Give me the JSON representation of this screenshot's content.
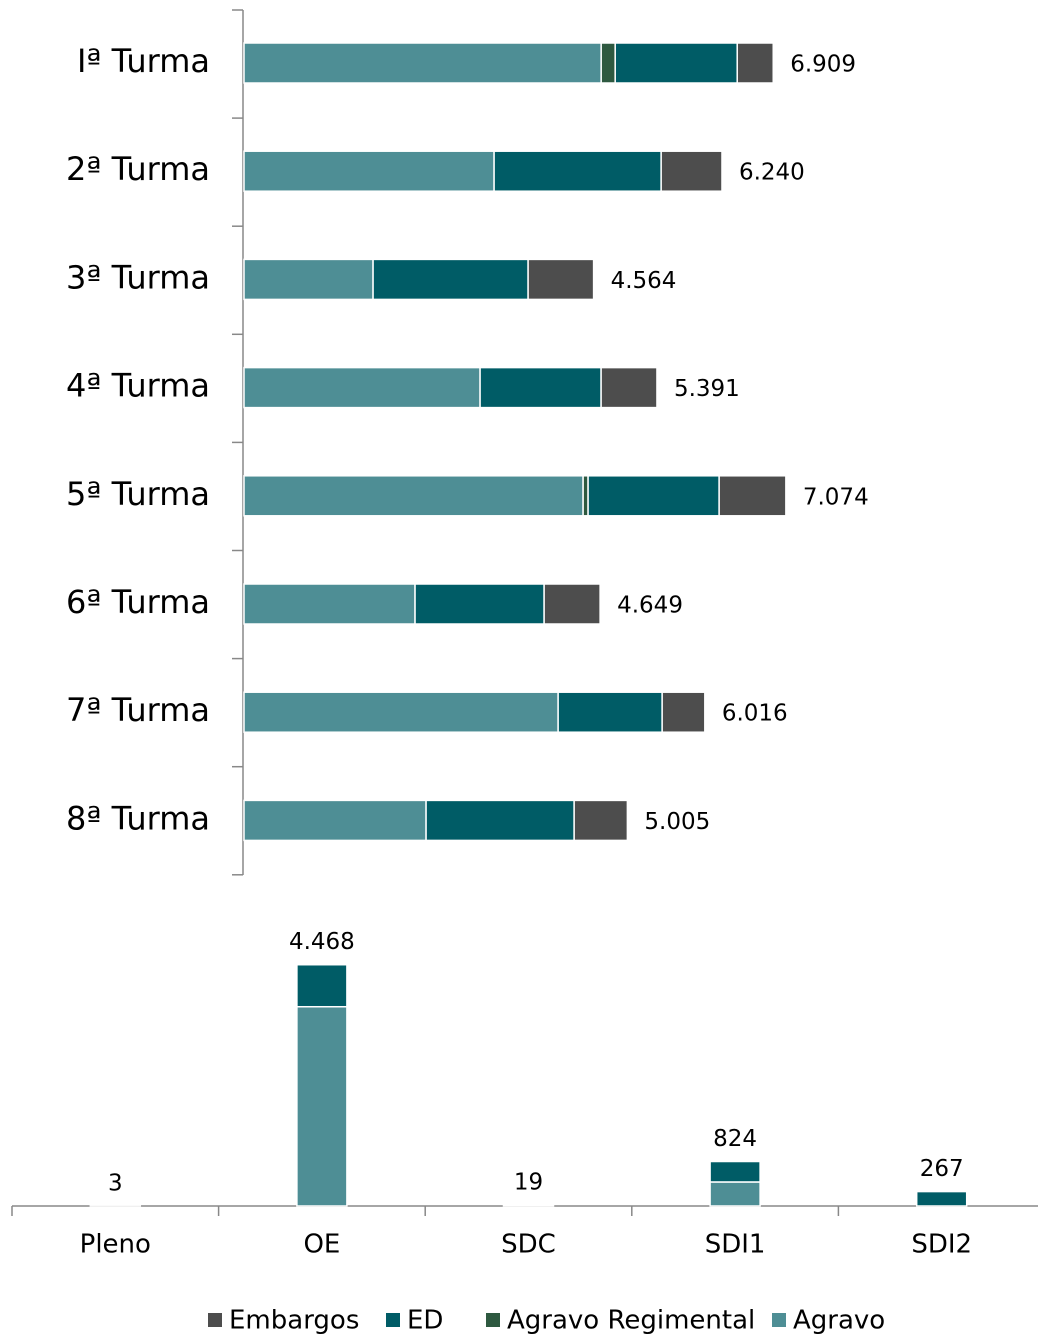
{
  "chart_data": [
    {
      "type": "bar",
      "orientation": "horizontal",
      "categories": [
        "Iª Turma",
        "2ª Turma",
        "3ª Turma",
        "4ª Turma",
        "5ª Turma",
        "6ª Turma",
        "7ª Turma",
        "8ª Turma"
      ],
      "series": [
        {
          "name": "Agravo",
          "color": "#4e8e95",
          "values": [
            4663,
            3265,
            1685,
            3082,
            4427,
            2233,
            4101,
            2377
          ]
        },
        {
          "name": "Agravo Regimental",
          "color": "#2e5940",
          "values": [
            183,
            0,
            0,
            0,
            65,
            0,
            0,
            0
          ]
        },
        {
          "name": "ED",
          "color": "#005c66",
          "values": [
            1593,
            2181,
            2024,
            1580,
            1711,
            1685,
            1358,
            1933
          ]
        },
        {
          "name": "Embargos",
          "color": "#4d4d4d",
          "values": [
            470,
            794,
            855,
            729,
            871,
            731,
            557,
            695
          ]
        }
      ],
      "totals": {
        "values": [
          6909,
          6240,
          4564,
          5391,
          7074,
          4649,
          6016,
          5005
        ],
        "value_labels": [
          "6.909",
          "6.240",
          "4.564",
          "5.391",
          "7.074",
          "4.649",
          "6.016",
          "5.005"
        ]
      },
      "xlim": [
        0,
        10000
      ]
    },
    {
      "type": "bar",
      "orientation": "vertical",
      "categories": [
        "Pleno",
        "OE",
        "SDC",
        "SDI1",
        "SDI2"
      ],
      "series": [
        {
          "name": "Agravo",
          "color": "#4e8e95",
          "values": [
            3,
            3690,
            19,
            445,
            0
          ]
        },
        {
          "name": "Agravo Regimental",
          "color": "#2e5940",
          "values": [
            0,
            0,
            0,
            0,
            0
          ]
        },
        {
          "name": "ED",
          "color": "#005c66",
          "values": [
            0,
            778,
            0,
            379,
            267
          ]
        },
        {
          "name": "Embargos",
          "color": "#4d4d4d",
          "values": [
            0,
            0,
            0,
            0,
            0
          ]
        }
      ],
      "totals": {
        "values": [
          3,
          4468,
          19,
          824,
          267
        ],
        "value_labels": [
          "3",
          "4.468",
          "19",
          "824",
          "267"
        ]
      },
      "ylim": [
        0,
        5000
      ]
    }
  ]
}
